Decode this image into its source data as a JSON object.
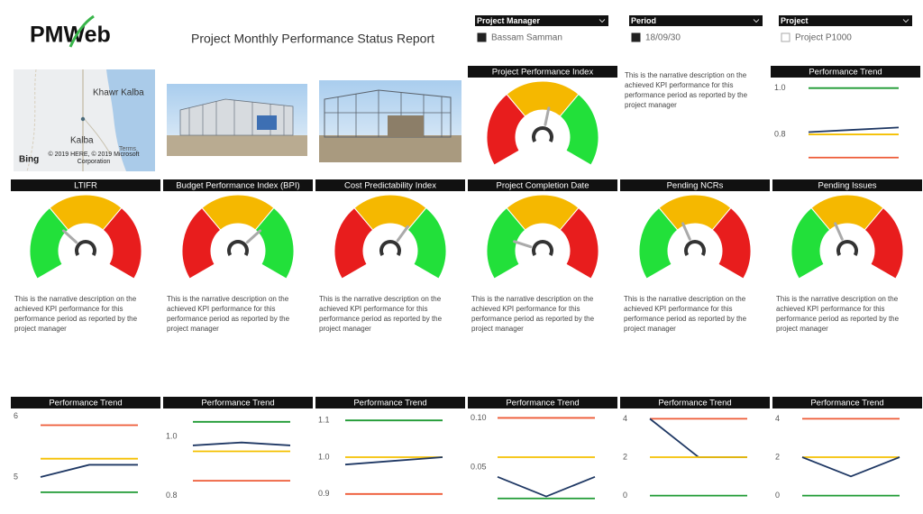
{
  "header": {
    "logo": "PMWeb",
    "title": "Project Monthly Performance Status Report"
  },
  "filters": [
    {
      "label": "Project Manager",
      "value": "Bassam Samman",
      "checked": true
    },
    {
      "label": "Period",
      "value": "18/09/30",
      "checked": true
    },
    {
      "label": "Project",
      "value": "Project P1000",
      "checked": false
    }
  ],
  "map": {
    "labels": [
      "Khawr Kalba",
      "Kalba"
    ],
    "brand": "Bing",
    "copyright": "© 2019 HERE, © 2019 Microsoft Corporation",
    "terms": "Terms"
  },
  "kpis": [
    {
      "title": "Project Performance Index",
      "gauge": {
        "colors": [
          "#e81d1d",
          "#f5b800",
          "#22e03a"
        ],
        "range": [
          0,
          100
        ],
        "needle": 55
      },
      "narrative": "This is the narrative description on the achieved KPI performance for this performance period as reported by the project manager",
      "trend": {
        "title": "Performance Trend",
        "ylim": [
          0.66,
          1.03
        ],
        "yticks": [
          {
            "value": 1,
            "label": "1.0"
          },
          0.8
        ],
        "series": [
          {
            "color": "#1e9a33",
            "values": [
              1,
              1,
              1
            ]
          },
          {
            "color": "#1f3864",
            "values": [
              0.81,
              0.82,
              0.83
            ]
          },
          {
            "color": "#f5c000",
            "values": [
              0.8,
              0.8,
              0.8
            ]
          },
          {
            "color": "#ee5a36",
            "values": [
              0.7,
              0.7,
              0.7
            ]
          }
        ]
      }
    },
    {
      "title": "LTIFR",
      "gauge": {
        "colors": [
          "#22e03a",
          "#f5b800",
          "#e81d1d"
        ],
        "range": [
          0,
          100
        ],
        "needle": 30
      },
      "narrative": "This is the narrative description on the achieved KPI performance for this performance period as reported by the project manager",
      "trend": {
        "title": "Performance Trend",
        "ylim": [
          4.6,
          6.05
        ],
        "yticks": [
          6,
          5
        ],
        "series": [
          {
            "color": "#ee5a36",
            "values": [
              5.85,
              5.85,
              5.85
            ]
          },
          {
            "color": "#f5c000",
            "values": [
              5.3,
              5.3,
              5.3
            ]
          },
          {
            "color": "#1f3864",
            "values": [
              5,
              5.2,
              5.2
            ]
          },
          {
            "color": "#1e9a33",
            "values": [
              4.75,
              4.75,
              4.75
            ]
          }
        ]
      }
    },
    {
      "title": "Budget Performance Index (BPI)",
      "gauge": {
        "colors": [
          "#e81d1d",
          "#f5b800",
          "#22e03a"
        ],
        "range": [
          0,
          100
        ],
        "needle": 70
      },
      "narrative": "This is the narrative description on the achieved KPI performance for this performance period as reported by the project manager",
      "trend": {
        "title": "Performance Trend",
        "ylim": [
          0.78,
          1.08
        ],
        "yticks": [
          {
            "value": 1,
            "label": "1.0"
          },
          0.8
        ],
        "series": [
          {
            "color": "#1e9a33",
            "values": [
              1.05,
              1.05,
              1.05
            ]
          },
          {
            "color": "#1f3864",
            "values": [
              0.97,
              0.98,
              0.97
            ]
          },
          {
            "color": "#f5c000",
            "values": [
              0.95,
              0.95,
              0.95
            ]
          },
          {
            "color": "#ee5a36",
            "values": [
              0.85,
              0.85,
              0.85
            ]
          }
        ]
      }
    },
    {
      "title": "Cost Predictability Index",
      "gauge": {
        "colors": [
          "#e81d1d",
          "#f5b800",
          "#22e03a"
        ],
        "range": [
          0,
          100
        ],
        "needle": 65
      },
      "narrative": "This is the narrative description on the achieved KPI performance for this performance period as reported by the project manager",
      "trend": {
        "title": "Performance Trend",
        "ylim": [
          0.88,
          1.12
        ],
        "yticks": [
          1.1,
          {
            "value": 1,
            "label": "1.0"
          },
          0.9
        ],
        "series": [
          {
            "color": "#1e9a33",
            "values": [
              1.1,
              1.1,
              1.1
            ]
          },
          {
            "color": "#f5c000",
            "values": [
              1,
              1,
              1
            ]
          },
          {
            "color": "#1f3864",
            "values": [
              0.98,
              0.99,
              1
            ]
          },
          {
            "color": "#ee5a36",
            "values": [
              0.9,
              0.9,
              0.9
            ]
          }
        ]
      }
    },
    {
      "title": "Project Completion Date",
      "gauge": {
        "colors": [
          "#22e03a",
          "#f5b800",
          "#e81d1d"
        ],
        "range": [
          0,
          100
        ],
        "needle": 20
      },
      "narrative": "This is the narrative description on the achieved KPI performance for this performance period as reported by the project manager",
      "trend": {
        "title": "Performance Trend",
        "ylim": [
          0.015,
          0.105
        ],
        "yticks": [
          {
            "value": 0.1,
            "label": "0.10"
          },
          0.05
        ],
        "series": [
          {
            "color": "#ee5a36",
            "values": [
              0.1,
              0.1,
              0.1
            ]
          },
          {
            "color": "#f5c000",
            "values": [
              0.06,
              0.06,
              0.06
            ]
          },
          {
            "color": "#1f3864",
            "values": [
              0.04,
              0.02,
              0.04
            ]
          },
          {
            "color": "#1e9a33",
            "values": [
              0.018,
              0.018,
              0.018
            ]
          }
        ]
      }
    },
    {
      "title": "Pending NCRs",
      "gauge": {
        "colors": [
          "#22e03a",
          "#f5b800",
          "#e81d1d"
        ],
        "range": [
          0,
          100
        ],
        "needle": 40
      },
      "narrative": "This is the narrative description on the achieved KPI performance for this performance period as reported by the project manager",
      "trend": {
        "title": "Performance Trend",
        "ylim": [
          -0.3,
          4.3
        ],
        "yticks": [
          4,
          2,
          0
        ],
        "series": [
          {
            "color": "#ee5a36",
            "values": [
              4,
              4,
              4
            ]
          },
          {
            "color": "#1f3864",
            "values": [
              4,
              2,
              2
            ]
          },
          {
            "color": "#f5c000",
            "values": [
              2,
              2,
              2
            ]
          },
          {
            "color": "#1e9a33",
            "values": [
              0,
              0,
              0
            ]
          }
        ]
      }
    },
    {
      "title": "Pending Issues",
      "gauge": {
        "colors": [
          "#22e03a",
          "#f5b800",
          "#e81d1d"
        ],
        "range": [
          0,
          100
        ],
        "needle": 40
      },
      "narrative": "This is the narrative description on the achieved KPI performance for this performance period as reported by the project manager",
      "trend": {
        "title": "Performance Trend",
        "ylim": [
          -0.3,
          4.3
        ],
        "yticks": [
          4,
          2,
          0
        ],
        "series": [
          {
            "color": "#ee5a36",
            "values": [
              4,
              4,
              4
            ]
          },
          {
            "color": "#f5c000",
            "values": [
              2,
              2,
              2
            ]
          },
          {
            "color": "#1f3864",
            "values": [
              2,
              1,
              2
            ]
          },
          {
            "color": "#1e9a33",
            "values": [
              0,
              0,
              0
            ]
          }
        ]
      }
    }
  ]
}
